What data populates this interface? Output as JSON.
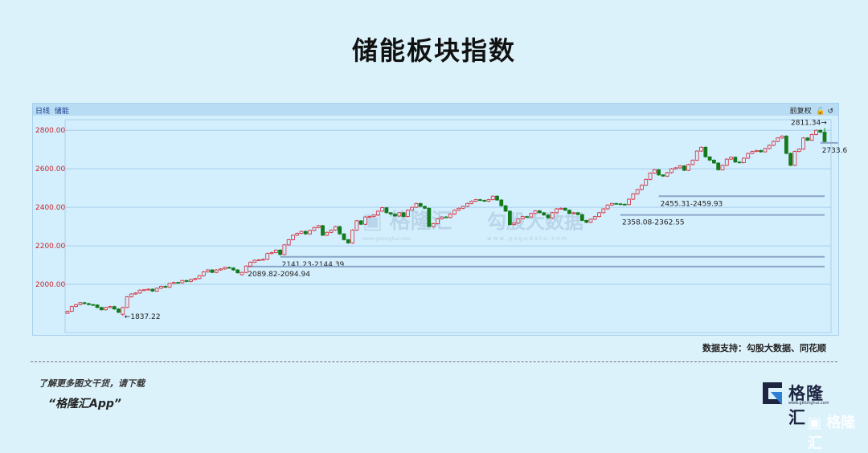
{
  "title": "储能板块指数",
  "panel": {
    "period": "日线",
    "name": "储能",
    "adjust": "前复权",
    "lock_icon": "lock-open-icon",
    "reset_icon": "undo-icon"
  },
  "source": "数据支持：勾股大数据、同花顺",
  "promo": {
    "line1": "了解更多图文干货，请下载",
    "line2": "“格隆汇App”"
  },
  "logo": {
    "name": "格隆汇",
    "url": "www.gelonghui.com"
  },
  "watermarks": {
    "center1": "格隆汇",
    "center1_url": "www.gelonghui.com",
    "center2": "勾股大数据",
    "center2_url": "www.gogudata.com",
    "corner": "格隆汇"
  },
  "colors": {
    "up": "#d62b3a",
    "down": "#157a1e",
    "axis_label": "#c8282c",
    "level_line": "#8aa6c8"
  },
  "chart_data": {
    "type": "candlestick",
    "title": "储能板块指数",
    "ylim": [
      1750,
      2855
    ],
    "yticks": [
      "2000.00",
      "2200.00",
      "2400.00",
      "2600.00",
      "2800.00"
    ],
    "ytick_values": [
      2000,
      2200,
      2400,
      2600,
      2800
    ],
    "grid": true,
    "close": [
      1860,
      1885,
      1895,
      1905,
      1900,
      1895,
      1893,
      1880,
      1868,
      1880,
      1885,
      1872,
      1855,
      1880,
      1935,
      1950,
      1955,
      1970,
      1972,
      1975,
      1965,
      1980,
      1990,
      1985,
      2005,
      2010,
      2008,
      2020,
      2015,
      2025,
      2030,
      2045,
      2065,
      2075,
      2062,
      2075,
      2080,
      2088,
      2085,
      2075,
      2060,
      2062,
      2095,
      2115,
      2125,
      2127,
      2130,
      2160,
      2165,
      2178,
      2155,
      2205,
      2232,
      2255,
      2265,
      2275,
      2262,
      2280,
      2295,
      2305,
      2255,
      2270,
      2282,
      2300,
      2262,
      2232,
      2215,
      2282,
      2330,
      2312,
      2350,
      2352,
      2360,
      2380,
      2398,
      2372,
      2365,
      2355,
      2372,
      2352,
      2385,
      2400,
      2420,
      2405,
      2395,
      2300,
      2315,
      2340,
      2350,
      2347,
      2365,
      2385,
      2395,
      2405,
      2420,
      2432,
      2440,
      2436,
      2432,
      2440,
      2458,
      2438,
      2408,
      2380,
      2310,
      2318,
      2340,
      2352,
      2350,
      2368,
      2382,
      2372,
      2360,
      2345,
      2372,
      2392,
      2395,
      2385,
      2368,
      2372,
      2362,
      2332,
      2322,
      2338,
      2352,
      2372,
      2392,
      2412,
      2420,
      2418,
      2416,
      2414,
      2442,
      2470,
      2492,
      2515,
      2545,
      2578,
      2595,
      2568,
      2562,
      2580,
      2600,
      2605,
      2615,
      2592,
      2622,
      2645,
      2692,
      2712,
      2662,
      2645,
      2630,
      2595,
      2618,
      2650,
      2660,
      2635,
      2632,
      2655,
      2680,
      2690,
      2695,
      2688,
      2705,
      2722,
      2742,
      2760,
      2770,
      2680,
      2618,
      2690,
      2702,
      2760,
      2748,
      2778,
      2800,
      2790,
      2741
    ],
    "open": [
      1850,
      1860,
      1885,
      1895,
      1905,
      1900,
      1895,
      1893,
      1880,
      1868,
      1880,
      1885,
      1872,
      1845,
      1880,
      1935,
      1950,
      1955,
      1970,
      1972,
      1975,
      1965,
      1980,
      1990,
      1985,
      2005,
      2010,
      2008,
      2020,
      2015,
      2025,
      2030,
      2045,
      2065,
      2075,
      2062,
      2075,
      2080,
      2088,
      2085,
      2075,
      2050,
      2062,
      2095,
      2115,
      2125,
      2127,
      2130,
      2160,
      2165,
      2178,
      2155,
      2205,
      2232,
      2255,
      2265,
      2275,
      2262,
      2280,
      2295,
      2305,
      2255,
      2270,
      2282,
      2300,
      2262,
      2232,
      2215,
      2282,
      2330,
      2312,
      2350,
      2352,
      2360,
      2380,
      2398,
      2372,
      2365,
      2355,
      2372,
      2352,
      2385,
      2400,
      2420,
      2405,
      2395,
      2300,
      2315,
      2340,
      2350,
      2347,
      2365,
      2385,
      2395,
      2405,
      2420,
      2432,
      2440,
      2436,
      2432,
      2440,
      2458,
      2438,
      2408,
      2380,
      2310,
      2318,
      2340,
      2352,
      2350,
      2368,
      2382,
      2372,
      2360,
      2345,
      2372,
      2392,
      2395,
      2385,
      2368,
      2372,
      2362,
      2332,
      2322,
      2338,
      2352,
      2372,
      2392,
      2412,
      2420,
      2418,
      2416,
      2414,
      2442,
      2470,
      2492,
      2515,
      2545,
      2578,
      2595,
      2568,
      2562,
      2580,
      2600,
      2605,
      2615,
      2592,
      2622,
      2645,
      2692,
      2712,
      2662,
      2645,
      2630,
      2595,
      2618,
      2650,
      2660,
      2635,
      2632,
      2655,
      2680,
      2690,
      2695,
      2688,
      2705,
      2722,
      2742,
      2760,
      2770,
      2680,
      2618,
      2690,
      2702,
      2760,
      2748,
      2778,
      2800,
      2790
    ],
    "annotations": [
      {
        "text": "←1837.22",
        "value": 1837.22,
        "index": 13
      },
      {
        "text": "2811.34→",
        "value": 2811.34,
        "index": 178
      }
    ],
    "levels": [
      {
        "label": "2141.23-2144.39",
        "low": 2141.23,
        "high": 2144.39,
        "from_index": 50
      },
      {
        "label": "2089.82-2094.94",
        "low": 2089.82,
        "high": 2094.94,
        "from_index": 42
      },
      {
        "label": "2455.31-2459.93",
        "low": 2455.31,
        "high": 2459.93,
        "from_index": 139
      },
      {
        "label": "2358.08-2362.55",
        "low": 2358.08,
        "high": 2362.55,
        "from_index": 130
      },
      {
        "label": "2733.6",
        "low": 2733.6,
        "high": 2736,
        "from_index": 177
      }
    ]
  }
}
